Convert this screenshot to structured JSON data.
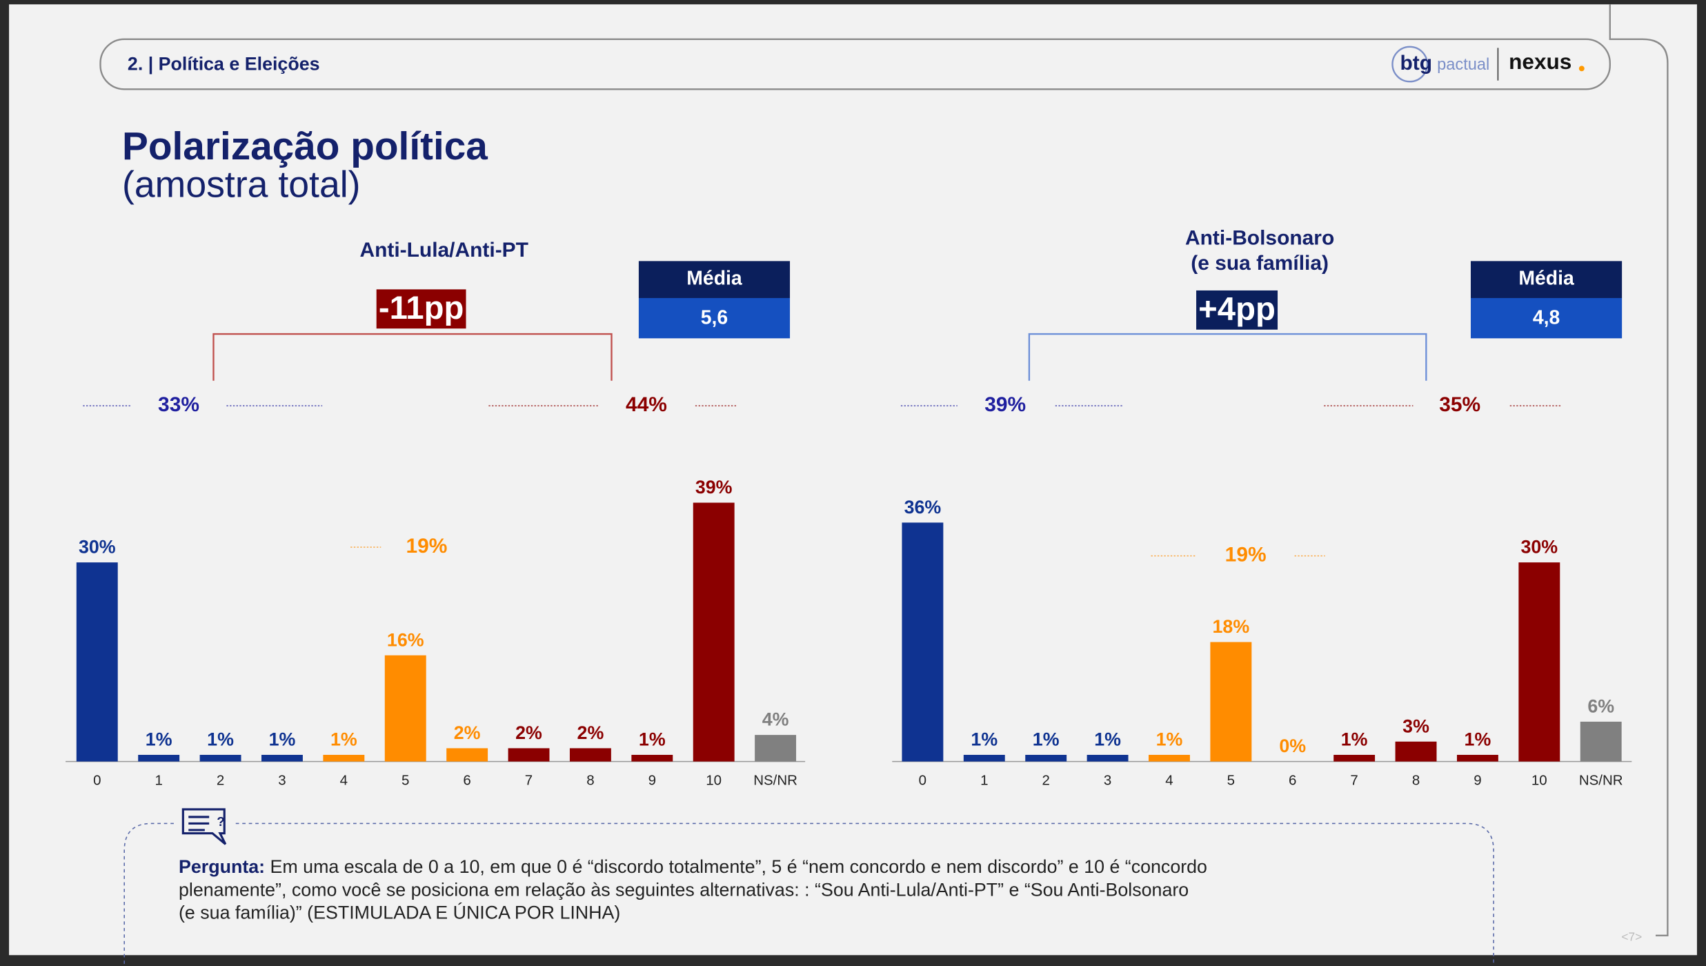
{
  "header": {
    "section": "2. | Política e Eleições",
    "logo_left": "btg",
    "logo_left_sub": "pactual",
    "logo_right": "nexus"
  },
  "title": "Polarização política",
  "subtitle": "(amostra total)",
  "chart_data": [
    {
      "type": "bar",
      "title": [
        "Anti-Lula/Anti-PT"
      ],
      "delta": {
        "value": -11,
        "label": "-11pp"
      },
      "delta_color": "#8b0000",
      "mean_header": "Média",
      "mean": {
        "value": 5.6,
        "label": "5,6"
      },
      "categories": [
        "0",
        "1",
        "2",
        "3",
        "4",
        "5",
        "6",
        "7",
        "8",
        "9",
        "10",
        "NS/NR"
      ],
      "values": [
        30,
        1,
        1,
        1,
        1,
        16,
        2,
        2,
        2,
        1,
        39,
        4
      ],
      "value_labels": [
        "30%",
        "1%",
        "1%",
        "1%",
        "1%",
        "16%",
        "2%",
        "2%",
        "2%",
        "1%",
        "39%",
        "4%"
      ],
      "colors": [
        "#0f3391",
        "#0f3391",
        "#0f3391",
        "#0f3391",
        "#ff8c00",
        "#ff8c00",
        "#ff8c00",
        "#8b0000",
        "#8b0000",
        "#8b0000",
        "#8b0000",
        "#808080"
      ],
      "groups": [
        {
          "value": 33,
          "label": "33%",
          "color": "#1f1f9f"
        },
        {
          "value": 44,
          "label": "44%",
          "color": "#8b0000"
        },
        {
          "value": 19,
          "label": "19%",
          "color": "#ff8c00"
        }
      ]
    },
    {
      "type": "bar",
      "title": [
        "Anti-Bolsonaro",
        "(e sua família)"
      ],
      "delta": {
        "value": 4,
        "label": "+4pp"
      },
      "delta_color": "#0b1f5c",
      "mean_header": "Média",
      "mean": {
        "value": 4.8,
        "label": "4,8"
      },
      "categories": [
        "0",
        "1",
        "2",
        "3",
        "4",
        "5",
        "6",
        "7",
        "8",
        "9",
        "10",
        "NS/NR"
      ],
      "values": [
        36,
        1,
        1,
        1,
        1,
        18,
        0,
        1,
        3,
        1,
        30,
        6
      ],
      "value_labels": [
        "36%",
        "1%",
        "1%",
        "1%",
        "1%",
        "18%",
        "0%",
        "1%",
        "3%",
        "1%",
        "30%",
        "6%"
      ],
      "colors": [
        "#0f3391",
        "#0f3391",
        "#0f3391",
        "#0f3391",
        "#ff8c00",
        "#ff8c00",
        "#ff8c00",
        "#8b0000",
        "#8b0000",
        "#8b0000",
        "#8b0000",
        "#808080"
      ],
      "groups": [
        {
          "value": 39,
          "label": "39%",
          "color": "#1f1f9f"
        },
        {
          "value": 35,
          "label": "35%",
          "color": "#8b0000"
        },
        {
          "value": 19,
          "label": "19%",
          "color": "#ff8c00"
        }
      ]
    }
  ],
  "question": {
    "label": "Pergunta:",
    "lines": [
      "Em uma escala de 0 a 10, em que 0 é “discordo totalmente”, 5 é “nem concordo e nem discordo” e 10 é “concordo",
      "plenamente”, como você se posiciona em relação às seguintes alternativas:  : “Sou Anti-Lula/Anti-PT” e “Sou Anti-Bolsonaro",
      "(e sua família)” (ESTIMULADA E ÚNICA POR LINHA)"
    ]
  },
  "page_number": "<7>"
}
